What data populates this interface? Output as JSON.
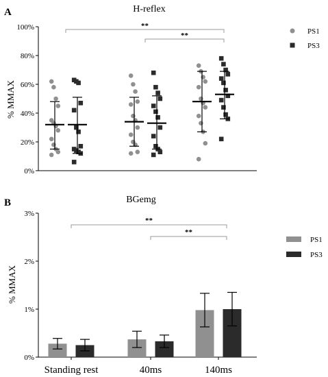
{
  "colors": {
    "ps1": "#909090",
    "ps3": "#2b2b2b",
    "axis": "#000000",
    "bracket": "#9a9a9a"
  },
  "chart_data": [
    {
      "type": "scatter",
      "panel_letter": "A",
      "title": "H-reflex",
      "ylabel": "% MMAX",
      "ylim": [
        0,
        100
      ],
      "yticks": [
        "0%",
        "20%",
        "40%",
        "60%",
        "80%",
        "100%"
      ],
      "categories": [
        "Standing rest",
        "40ms",
        "140ms"
      ],
      "legend": {
        "placement": "top-right"
      },
      "series": [
        {
          "name": "PS1",
          "marker": "circle",
          "points": [
            [
              62,
              58,
              50,
              45,
              35,
              33,
              31,
              28,
              22,
              18,
              15,
              13,
              11
            ],
            [
              66,
              60,
              55,
              48,
              46,
              38,
              35,
              30,
              25,
              20,
              18,
              13,
              12
            ],
            [
              73,
              69,
              65,
              62,
              58,
              50,
              47,
              44,
              38,
              33,
              27,
              19,
              8
            ]
          ],
          "mean": [
            32,
            34,
            48
          ],
          "sd_low": [
            15,
            17,
            27
          ],
          "sd_high": [
            48,
            51,
            69
          ]
        },
        {
          "name": "PS3",
          "marker": "square",
          "points": [
            [
              63,
              62,
              61,
              47,
              42,
              30,
              27,
              17,
              15,
              14,
              13,
              12,
              6
            ],
            [
              68,
              58,
              54,
              50,
              45,
              41,
              37,
              30,
              24,
              17,
              15,
              13,
              11
            ],
            [
              78,
              74,
              70,
              67,
              64,
              61,
              56,
              52,
              49,
              44,
              39,
              36,
              22
            ]
          ],
          "mean": [
            32,
            33,
            53
          ],
          "sd_low": [
            12,
            15,
            36
          ],
          "sd_high": [
            51,
            52,
            69
          ]
        }
      ],
      "annotations": [
        {
          "text": "**",
          "from": "Standing rest",
          "to": "140ms"
        },
        {
          "text": "**",
          "from": "40ms",
          "to": "140ms"
        }
      ]
    },
    {
      "type": "bar",
      "panel_letter": "B",
      "title": "BGemg",
      "ylabel": "% MMAX",
      "ylim": [
        0,
        3
      ],
      "yticks": [
        "0%",
        "1%",
        "2%",
        "3%"
      ],
      "categories": [
        "Standing rest",
        "40ms",
        "140ms"
      ],
      "legend": {
        "placement": "top-right"
      },
      "series": [
        {
          "name": "PS1",
          "values": [
            0.28,
            0.37,
            0.98
          ],
          "err": [
            0.11,
            0.17,
            0.35
          ]
        },
        {
          "name": "PS3",
          "values": [
            0.25,
            0.33,
            1.0
          ],
          "err": [
            0.12,
            0.13,
            0.35
          ]
        }
      ],
      "annotations": [
        {
          "text": "**",
          "from": "Standing rest",
          "to": "140ms"
        },
        {
          "text": "**",
          "from": "40ms",
          "to": "140ms"
        }
      ]
    }
  ]
}
